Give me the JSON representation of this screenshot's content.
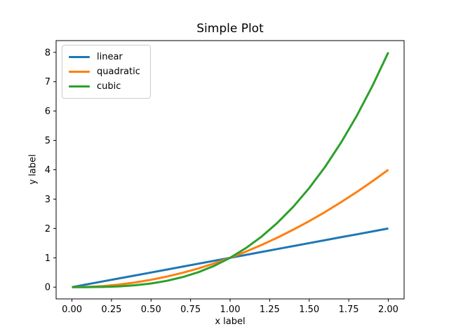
{
  "chart_data": {
    "type": "line",
    "title": "Simple Plot",
    "xlabel": "x label",
    "ylabel": "y label",
    "xlim": [
      -0.1,
      2.1
    ],
    "ylim": [
      -0.4,
      8.4
    ],
    "grid": false,
    "background": "#ffffff",
    "axes_edge_color": "#000000",
    "xticks": {
      "values": [
        0,
        0.25,
        0.5,
        0.75,
        1.0,
        1.25,
        1.5,
        1.75,
        2.0
      ],
      "labels": [
        "0.00",
        "0.25",
        "0.50",
        "0.75",
        "1.00",
        "1.25",
        "1.50",
        "1.75",
        "2.00"
      ]
    },
    "yticks": {
      "values": [
        0,
        1,
        2,
        3,
        4,
        5,
        6,
        7,
        8
      ],
      "labels": [
        "0",
        "1",
        "2",
        "3",
        "4",
        "5",
        "6",
        "7",
        "8"
      ]
    },
    "legend": {
      "position": "upper-left",
      "border_color": "#cccccc",
      "entries": [
        "linear",
        "quadratic",
        "cubic"
      ]
    },
    "x": [
      0,
      0.1,
      0.2,
      0.3,
      0.4,
      0.5,
      0.6,
      0.7,
      0.8,
      0.9,
      1.0,
      1.1,
      1.2,
      1.3,
      1.4,
      1.5,
      1.6,
      1.7,
      1.8,
      1.9,
      2.0
    ],
    "series": [
      {
        "name": "linear",
        "color": "#1f77b4",
        "values": [
          0,
          0.1,
          0.2,
          0.3,
          0.4,
          0.5,
          0.6,
          0.7,
          0.8,
          0.9,
          1.0,
          1.1,
          1.2,
          1.3,
          1.4,
          1.5,
          1.6,
          1.7,
          1.8,
          1.9,
          2.0
        ]
      },
      {
        "name": "quadratic",
        "color": "#ff7f0e",
        "values": [
          0,
          0.01,
          0.04,
          0.09,
          0.16,
          0.25,
          0.36,
          0.49,
          0.64,
          0.81,
          1.0,
          1.21,
          1.44,
          1.69,
          1.96,
          2.25,
          2.56,
          2.89,
          3.24,
          3.61,
          4.0
        ]
      },
      {
        "name": "cubic",
        "color": "#2ca02c",
        "values": [
          0,
          0.001,
          0.008,
          0.027,
          0.064,
          0.125,
          0.216,
          0.343,
          0.512,
          0.729,
          1.0,
          1.331,
          1.728,
          2.197,
          2.744,
          3.375,
          4.096,
          4.913,
          5.832,
          6.859,
          8.0
        ]
      }
    ]
  }
}
